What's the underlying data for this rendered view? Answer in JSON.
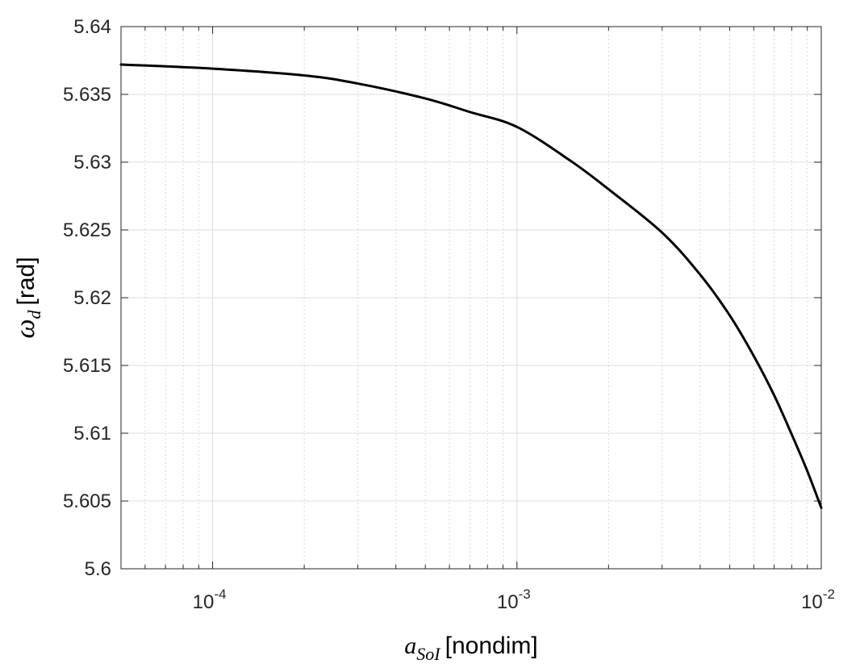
{
  "chart_data": {
    "type": "line",
    "title": "",
    "xlabel": {
      "symbol": "a",
      "subscript": "SoI",
      "unit": "[nondim]"
    },
    "ylabel": {
      "symbol": "ω",
      "subscript": "d",
      "unit": "[rad]"
    },
    "xscale": "log",
    "xlim": [
      5e-05,
      0.01
    ],
    "ylim": [
      5.6,
      5.64
    ],
    "grid": true,
    "xticks": [
      {
        "value": 0.0001,
        "base": "10",
        "exp": "-4"
      },
      {
        "value": 0.001,
        "base": "10",
        "exp": "-3"
      },
      {
        "value": 0.01,
        "base": "10",
        "exp": "-2"
      }
    ],
    "yticks": [
      {
        "value": 5.6,
        "label": "5.6"
      },
      {
        "value": 5.605,
        "label": "5.605"
      },
      {
        "value": 5.61,
        "label": "5.61"
      },
      {
        "value": 5.615,
        "label": "5.615"
      },
      {
        "value": 5.62,
        "label": "5.62"
      },
      {
        "value": 5.625,
        "label": "5.625"
      },
      {
        "value": 5.63,
        "label": "5.63"
      },
      {
        "value": 5.635,
        "label": "5.635"
      },
      {
        "value": 5.64,
        "label": "5.64"
      }
    ],
    "series": [
      {
        "color": "#000000",
        "x": [
          5e-05,
          0.0001,
          0.0002,
          0.0003,
          0.0005,
          0.0007,
          0.001,
          0.0015,
          0.002,
          0.003,
          0.004,
          0.005,
          0.006,
          0.007,
          0.008,
          0.009,
          0.01
        ],
        "y": [
          5.6372,
          5.6369,
          5.6364,
          5.6358,
          5.6347,
          5.6337,
          5.6326,
          5.6301,
          5.628,
          5.6248,
          5.6217,
          5.6187,
          5.6157,
          5.6128,
          5.6099,
          5.6072,
          5.6045
        ]
      }
    ]
  }
}
